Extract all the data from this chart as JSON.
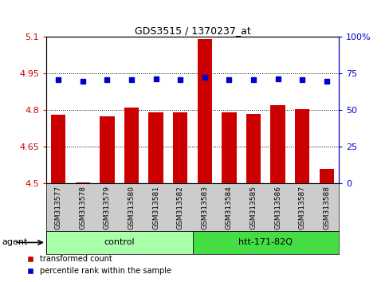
{
  "title": "GDS3515 / 1370237_at",
  "samples": [
    "GSM313577",
    "GSM313578",
    "GSM313579",
    "GSM313580",
    "GSM313581",
    "GSM313582",
    "GSM313583",
    "GSM313584",
    "GSM313585",
    "GSM313586",
    "GSM313587",
    "GSM313588"
  ],
  "bar_values": [
    4.78,
    4.505,
    4.775,
    4.81,
    4.79,
    4.79,
    5.09,
    4.79,
    4.785,
    4.82,
    4.805,
    4.56
  ],
  "dot_values": [
    4.923,
    4.918,
    4.923,
    4.924,
    4.928,
    4.925,
    4.935,
    4.924,
    4.923,
    4.926,
    4.925,
    4.918
  ],
  "bar_bottom": 4.5,
  "ylim": [
    4.5,
    5.1
  ],
  "yticks": [
    4.5,
    4.65,
    4.8,
    4.95,
    5.1
  ],
  "ytick_labels": [
    "4.5",
    "4.65",
    "4.8",
    "4.95",
    "5.1"
  ],
  "y2ticks": [
    0,
    25,
    50,
    75,
    100
  ],
  "y2tick_labels": [
    "0",
    "25",
    "50",
    "75",
    "100%"
  ],
  "y2lim": [
    0,
    100
  ],
  "bar_color": "#cc0000",
  "dot_color": "#0000cc",
  "tick_color_left": "#cc0000",
  "tick_color_right": "#0000cc",
  "grid_color": "#000000",
  "control_samples": 6,
  "group_labels": [
    "control",
    "htt-171-82Q"
  ],
  "group_colors": [
    "#ccffcc",
    "#33cc33"
  ],
  "agent_label": "agent",
  "legend_bar_label": "transformed count",
  "legend_dot_label": "percentile rank within the sample",
  "xlabel_area_color": "#cccccc",
  "bar_width": 0.6
}
